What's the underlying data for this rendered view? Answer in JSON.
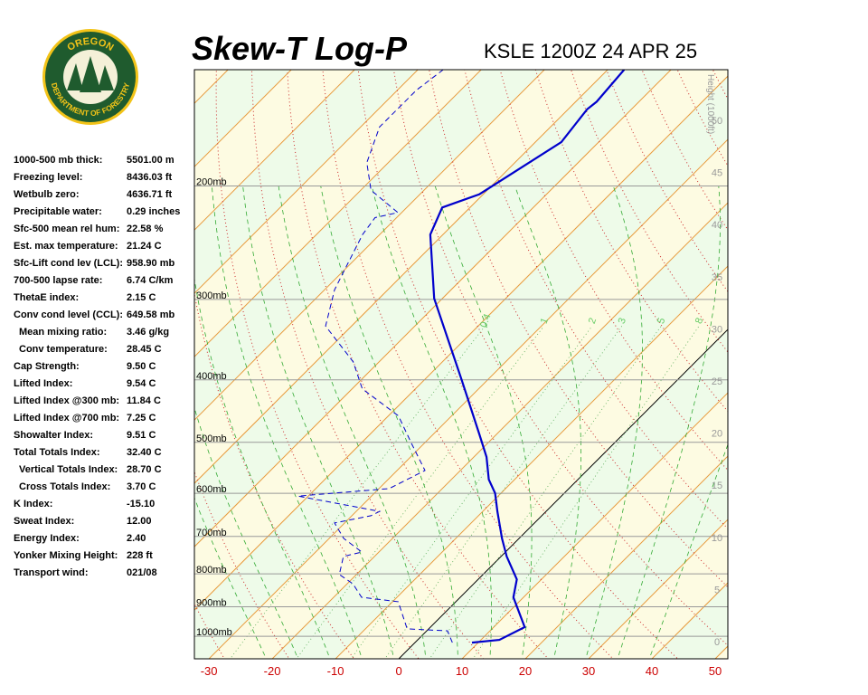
{
  "logo": {
    "top": "OREGON",
    "bottom": "DEPARTMENT OF FORESTRY"
  },
  "indices": [
    {
      "label": "1000-500 mb thick:",
      "value": "5501.00 m"
    },
    {
      "label": "Freezing level:",
      "value": "8436.03 ft"
    },
    {
      "label": "Wetbulb zero:",
      "value": "4636.71 ft"
    },
    {
      "label": "Precipitable water:",
      "value": "0.29 inches"
    },
    {
      "label": "Sfc-500 mean rel hum:",
      "value": "22.58 %"
    },
    {
      "label": "Est. max temperature:",
      "value": "21.24 C"
    },
    {
      "label": "Sfc-Lift cond lev (LCL):",
      "value": "958.90 mb"
    },
    {
      "label": "700-500 lapse rate:",
      "value": "6.74 C/km"
    },
    {
      "label": "ThetaE index:",
      "value": "2.15 C"
    },
    {
      "label": "Conv cond level (CCL):",
      "value": "649.58 mb"
    },
    {
      "label": "Mean mixing ratio:",
      "value": "3.46 g/kg"
    },
    {
      "label": "Conv temperature:",
      "value": "28.45 C"
    },
    {
      "label": "Cap Strength:",
      "value": "9.50 C"
    },
    {
      "label": "Lifted Index:",
      "value": "9.54 C"
    },
    {
      "label": "Lifted Index @300 mb:",
      "value": "11.84 C"
    },
    {
      "label": "Lifted Index @700 mb:",
      "value": "7.25 C"
    },
    {
      "label": "Showalter Index:",
      "value": "9.51 C"
    },
    {
      "label": "Total Totals Index:",
      "value": "32.40 C"
    },
    {
      "label": "Vertical Totals Index:",
      "value": "28.70 C"
    },
    {
      "label": "Cross Totals Index:",
      "value": "3.70 C"
    },
    {
      "label": "K Index:",
      "value": "-15.10"
    },
    {
      "label": "Sweat Index:",
      "value": "12.00"
    },
    {
      "label": "Energy Index:",
      "value": "2.40"
    },
    {
      "label": "Yonker Mixing Height:",
      "value": "228 ft"
    },
    {
      "label": "Transport wind:",
      "value": "021/08"
    }
  ],
  "chart_data": {
    "type": "skew-t",
    "title": "Skew-T Log-P",
    "subtitle": "KSLE 1200Z 24 APR 25",
    "xlim": [
      -32.3,
      52
    ],
    "xticks": [
      -30,
      -20,
      -10,
      0,
      10,
      20,
      30,
      40,
      50
    ],
    "ylim": [
      1084,
      132
    ],
    "yticks": [
      {
        "value": 1000,
        "label": "1000mb"
      },
      {
        "value": 900,
        "label": "900mb"
      },
      {
        "value": 800,
        "label": "800mb"
      },
      {
        "value": 700,
        "label": "700mb"
      },
      {
        "value": 600,
        "label": "600mb"
      },
      {
        "value": 500,
        "label": "500mb"
      },
      {
        "value": 400,
        "label": "400mb"
      },
      {
        "value": 300,
        "label": "300mb"
      },
      {
        "value": 200,
        "label": "200mb"
      }
    ],
    "y2label": "Height (1000ft)",
    "y2ticks": [
      0,
      5,
      10,
      15,
      20,
      25,
      30,
      35,
      40,
      45,
      50
    ],
    "mixing_ratio_labels": [
      0.4,
      1,
      2,
      3,
      5,
      8
    ],
    "series": [
      {
        "color": "#0000cc",
        "style": "solid",
        "pressure": [
          1023,
          1013,
          968,
          870,
          816,
          752,
          705,
          640,
          600,
          571,
          527,
          486,
          400,
          299,
          238,
          216,
          206,
          171,
          152,
          148,
          132
        ],
        "values": [
          9.0,
          12.9,
          14.9,
          8.4,
          6.1,
          0.9,
          -2.7,
          -7.7,
          -10.9,
          -14.1,
          -18.0,
          -22.7,
          -34.1,
          -51.3,
          -62.0,
          -64.4,
          -60.6,
          -55.9,
          -57.0,
          -56.7,
          -57.4
        ]
      },
      {
        "color": "#0000cc",
        "style": "dashed",
        "pressure": [
          1023,
          981,
          974,
          884,
          870,
          829,
          802,
          752,
          740,
          705,
          667,
          650,
          640,
          606,
          590,
          553,
          502,
          455,
          413,
          375,
          330,
          290,
          271,
          254,
          238,
          224,
          220,
          203,
          184,
          162,
          142,
          132
        ],
        "values": [
          5.9,
          3.3,
          -3.4,
          -9.1,
          -15.6,
          -19.1,
          -22.7,
          -24.9,
          -22.7,
          -27.7,
          -31.6,
          -27.0,
          -26.3,
          -41.6,
          -28.4,
          -25.6,
          -32.0,
          -38.4,
          -48.4,
          -54.1,
          -64.1,
          -68.4,
          -69.9,
          -71.3,
          -72.7,
          -73.4,
          -70.6,
          -78.4,
          -83.4,
          -87.0,
          -87.0,
          -86.0
        ]
      }
    ]
  }
}
